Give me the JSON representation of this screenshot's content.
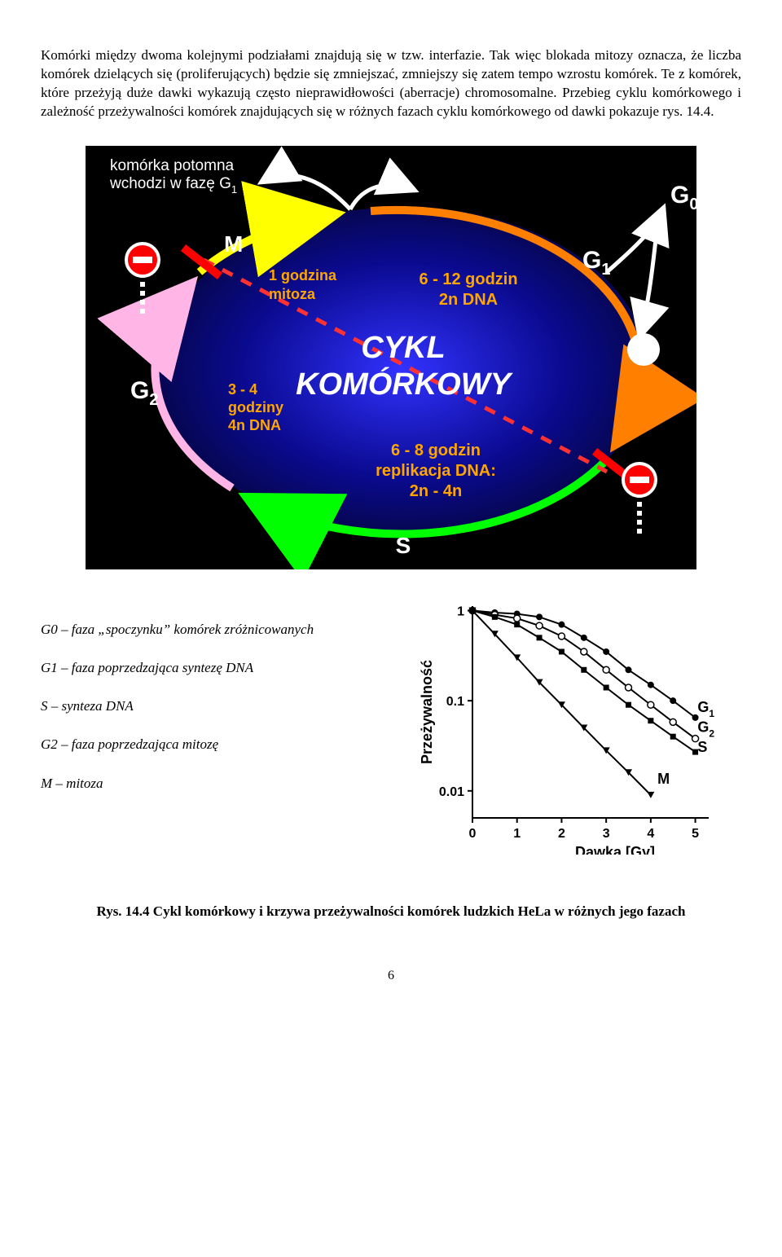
{
  "paragraph": "Komórki między dwoma kolejnymi podziałami znajdują się w tzw. interfazie. Tak więc blokada mitozy oznacza, że liczba komórek dzielących się (proliferujących) będzie się zmniejszać, zmniejszy się zatem tempo wzrostu komórek. Te z komórek, które przeżyją duże dawki wykazują często nieprawidłowości (aberracje) chromosomalne. Przebieg cyklu komórkowego i zależność przeżywalności komórek znajdujących się w różnych fazach cyklu komórkowego od dawki pokazuje rys. 14.4.",
  "cycle": {
    "title1": "CYKL",
    "title2": "KOMÓRKOWY",
    "daughter_label_l1": "komórka potomna",
    "daughter_label_l2": "wchodzi w fazę G",
    "daughter_label_sub": "1",
    "g0_label": "G",
    "g0_sub": "0",
    "g1_label": "G",
    "g1_sub": "1",
    "g1_time_l1": "6 - 12 godzin",
    "g1_time_l2": "2n DNA",
    "m_label": "M",
    "m_time_l1": "1 godzina",
    "m_time_l2": "mitoza",
    "g2_label": "G",
    "g2_sub": "2",
    "g2_time_l1": "3 - 4",
    "g2_time_l2": "godziny",
    "g2_time_l3": "4n DNA",
    "s_label": "S",
    "s_time_l1": "6 - 8 godzin",
    "s_time_l2": "replikacja DNA:",
    "s_time_l3": "2n - 4n",
    "colors": {
      "bg_outer": "#000000",
      "cycle_fill_outer": "#0a0a70",
      "cycle_fill_inner": "#2020d0",
      "g1_arc": "#ff7f00",
      "s_arc": "#00ff00",
      "g2_arc": "#ffb6e6",
      "m_arc": "#ffff00",
      "daughter_arrow": "#ffffff",
      "g0_arrow": "#ffffff",
      "g0_circle": "#ffffff",
      "stop_red": "#ff0000",
      "stop_white": "#ffffff",
      "red_dash": "#ff3232",
      "red_bar": "#ff0000",
      "text_white": "#ffffff",
      "text_orange": "#ffa500"
    }
  },
  "legend": {
    "g0": "G0 – faza „spoczynku” komórek zróżnicowanych",
    "g1": "G1 – faza poprzedzająca syntezę DNA",
    "s": "S – synteza DNA",
    "g2": "G2 – faza poprzedzająca mitozę",
    "m": "M – mitoza"
  },
  "chart": {
    "ylabel": "Przeżywalność",
    "xlabel": "Dawka [Gy]",
    "yticks": [
      {
        "v": 1,
        "label": "1"
      },
      {
        "v": 0.1,
        "label": "0.1"
      },
      {
        "v": 0.01,
        "label": "0.01"
      }
    ],
    "xticks": [
      0,
      1,
      2,
      3,
      4,
      5
    ],
    "xlim": [
      0,
      5.3
    ],
    "ylim_log": [
      -2.3,
      0.05
    ],
    "series": [
      {
        "name": "G1",
        "marker": "circle-filled",
        "label": "G",
        "sub": "1",
        "points": [
          [
            0,
            1
          ],
          [
            0.5,
            0.95
          ],
          [
            1,
            0.92
          ],
          [
            1.5,
            0.85
          ],
          [
            2,
            0.7
          ],
          [
            2.5,
            0.5
          ],
          [
            3,
            0.35
          ],
          [
            3.5,
            0.22
          ],
          [
            4,
            0.15
          ],
          [
            4.5,
            0.1
          ],
          [
            5,
            0.065
          ]
        ]
      },
      {
        "name": "G2",
        "marker": "circle-open",
        "label": "G",
        "sub": "2",
        "points": [
          [
            0,
            1
          ],
          [
            0.5,
            0.9
          ],
          [
            1,
            0.82
          ],
          [
            1.5,
            0.68
          ],
          [
            2,
            0.52
          ],
          [
            2.5,
            0.35
          ],
          [
            3,
            0.22
          ],
          [
            3.5,
            0.14
          ],
          [
            4,
            0.09
          ],
          [
            4.5,
            0.058
          ],
          [
            5,
            0.038
          ]
        ]
      },
      {
        "name": "S",
        "marker": "square-filled",
        "label": "S",
        "sub": "",
        "points": [
          [
            0,
            1
          ],
          [
            0.5,
            0.85
          ],
          [
            1,
            0.7
          ],
          [
            1.5,
            0.5
          ],
          [
            2,
            0.35
          ],
          [
            2.5,
            0.22
          ],
          [
            3,
            0.14
          ],
          [
            3.5,
            0.09
          ],
          [
            4,
            0.06
          ],
          [
            4.5,
            0.04
          ],
          [
            5,
            0.027
          ]
        ]
      },
      {
        "name": "M",
        "marker": "triangle-filled",
        "label": "M",
        "sub": "",
        "points": [
          [
            0,
            1
          ],
          [
            0.5,
            0.55
          ],
          [
            1,
            0.3
          ],
          [
            1.5,
            0.16
          ],
          [
            2,
            0.09
          ],
          [
            2.5,
            0.05
          ],
          [
            3,
            0.028
          ],
          [
            3.5,
            0.016
          ],
          [
            4,
            0.009
          ]
        ]
      }
    ],
    "label_positions": {
      "G1": [
        5.05,
        0.075
      ],
      "G2": [
        5.05,
        0.045
      ],
      "S": [
        5.05,
        0.027
      ],
      "M": [
        4.15,
        0.012
      ]
    },
    "colors": {
      "axis": "#000000",
      "line": "#000000",
      "text": "#000000"
    },
    "font_size_axis": 18,
    "font_size_tick": 16
  },
  "caption": "Rys. 14.4 Cykl komórkowy i krzywa przeżywalności komórek ludzkich HeLa w różnych jego fazach",
  "page_number": "6"
}
